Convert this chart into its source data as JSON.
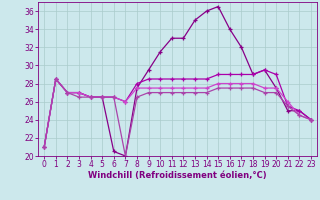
{
  "xlabel": "Windchill (Refroidissement éolien,°C)",
  "x_values": [
    0,
    1,
    2,
    3,
    4,
    5,
    6,
    7,
    8,
    9,
    10,
    11,
    12,
    13,
    14,
    15,
    16,
    17,
    18,
    19,
    20,
    21,
    22,
    23
  ],
  "lines": [
    {
      "y": [
        21,
        28.5,
        27,
        27,
        26.5,
        26.5,
        20.5,
        20,
        27.5,
        29.5,
        31.5,
        33,
        33,
        35,
        36,
        36.5,
        34,
        32,
        29,
        29.5,
        27.5,
        25,
        25,
        24
      ],
      "color": "#880088"
    },
    {
      "y": [
        21,
        28.5,
        27,
        27,
        26.5,
        26.5,
        26.5,
        26,
        28,
        28.5,
        28.5,
        28.5,
        28.5,
        28.5,
        28.5,
        29,
        29,
        29,
        29,
        29.5,
        29,
        25.5,
        25,
        24
      ],
      "color": "#aa00aa"
    },
    {
      "y": [
        21,
        28.5,
        27,
        27,
        26.5,
        26.5,
        26.5,
        26,
        27.5,
        27.5,
        27.5,
        27.5,
        27.5,
        27.5,
        27.5,
        28,
        28,
        28,
        28,
        27.5,
        27.5,
        26,
        24.5,
        24
      ],
      "color": "#cc44cc"
    },
    {
      "y": [
        21,
        28.5,
        27,
        26.5,
        26.5,
        26.5,
        26.5,
        20,
        26.5,
        27,
        27,
        27,
        27,
        27,
        27,
        27.5,
        27.5,
        27.5,
        27.5,
        27,
        27,
        25.5,
        24.5,
        24
      ],
      "color": "#aa44aa"
    }
  ],
  "bg_color": "#cce8ec",
  "grid_color": "#aacccc",
  "axis_color": "#800080",
  "ylim": [
    20,
    37
  ],
  "yticks": [
    20,
    22,
    24,
    26,
    28,
    30,
    32,
    34,
    36
  ],
  "xlim": [
    -0.5,
    23.5
  ],
  "xticks": [
    0,
    1,
    2,
    3,
    4,
    5,
    6,
    7,
    8,
    9,
    10,
    11,
    12,
    13,
    14,
    15,
    16,
    17,
    18,
    19,
    20,
    21,
    22,
    23
  ],
  "tick_fontsize": 5.5,
  "xlabel_fontsize": 6.0
}
